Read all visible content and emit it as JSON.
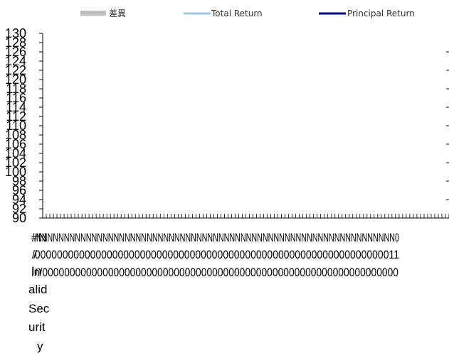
{
  "chart_data": {
    "type": "line",
    "title": "",
    "xlabel": "",
    "ylabel": "",
    "legend_position": "top",
    "grid": false,
    "ylim": [
      90,
      130
    ],
    "y_ticks": [
      "130",
      "128",
      "126",
      "124",
      "122",
      "120",
      "118",
      "116",
      "114",
      "112",
      "110",
      "108",
      "106",
      "104",
      "102",
      "100",
      "98",
      "96",
      "94",
      "92",
      "90"
    ],
    "legend": [
      {
        "label": "差異",
        "kind": "bar",
        "color": "#BFBFBF"
      },
      {
        "label": "Total Return",
        "kind": "line",
        "color": "#9DC3E6"
      },
      {
        "label": "Principal Return",
        "kind": "line",
        "color": "#000080"
      }
    ],
    "x_first_label_lines": [
      "#N",
      "/",
      "In",
      "alid",
      "Sec",
      "urit",
      "y"
    ],
    "x_overlap_rows": [
      "#NNNNNNNNNNNNNNNNNNNNNNNNNNNNNNNNNNNNNNNNNNNNNNNNNNNNNNNNNNNNNNNNN0",
      "/000000000000000000000000000000000000000000000000000000000000000011",
      "In/00000000000000000000000000000000000000000000000000000000000000000"
    ],
    "series": [
      {
        "name": "差異",
        "values": []
      },
      {
        "name": "Total Return",
        "values": []
      },
      {
        "name": "Principal Return",
        "values": []
      }
    ]
  }
}
